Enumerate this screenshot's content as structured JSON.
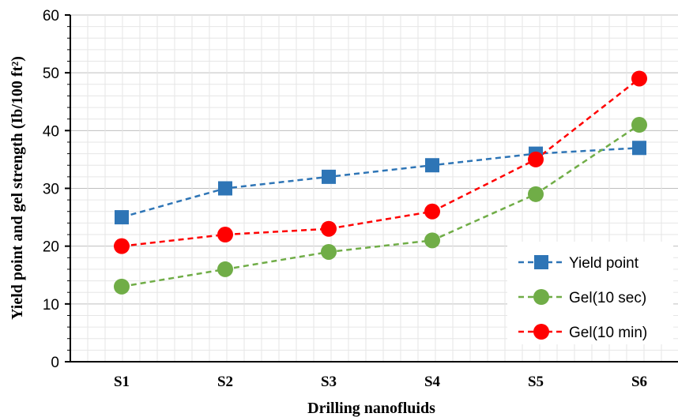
{
  "chart_data": {
    "type": "line",
    "categories": [
      "S1",
      "S2",
      "S3",
      "S4",
      "S5",
      "S6"
    ],
    "series": [
      {
        "name": "Yield point",
        "values": [
          25,
          30,
          32,
          34,
          36,
          37
        ],
        "color": "#2E75B6",
        "marker": "square"
      },
      {
        "name": "Gel(10 sec)",
        "values": [
          13,
          16,
          19,
          21,
          29,
          41
        ],
        "color": "#70AD47",
        "marker": "circle"
      },
      {
        "name": "Gel(10 min)",
        "values": [
          20,
          22,
          23,
          26,
          35,
          49
        ],
        "color": "#FF0000",
        "marker": "circle"
      }
    ],
    "title": "",
    "xlabel": "Drilling  nanofluids",
    "ylabel": "Yield  point and gel strength (Ib/100 ft²)",
    "ylim": [
      0,
      60
    ],
    "yticks": [
      "0",
      "10",
      "20",
      "30",
      "40",
      "50",
      "60"
    ],
    "grid": true,
    "legend": "bottom-right",
    "line_style": "dashed"
  }
}
